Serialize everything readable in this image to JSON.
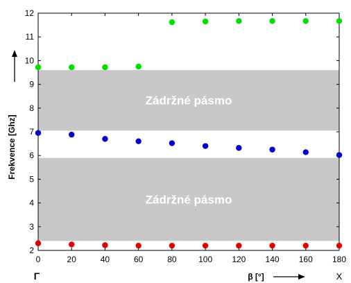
{
  "chart_data": {
    "type": "scatter",
    "xlabel": "β [°]",
    "ylabel": "Frekvence [Ghz]",
    "xlim": [
      0,
      180
    ],
    "ylim": [
      2,
      12
    ],
    "xticks": [
      "0",
      "20",
      "40",
      "60",
      "80",
      "100",
      "120",
      "140",
      "160",
      "180"
    ],
    "yticks": [
      "2",
      "3",
      "4",
      "5",
      "6",
      "7",
      "8",
      "9",
      "10",
      "11",
      "12"
    ],
    "grid": false,
    "corner_left": "Γ",
    "corner_right": "X",
    "bands": [
      {
        "label": "Zádržné pásmo",
        "ymin": 7.05,
        "ymax": 9.6,
        "color": "#c8c8c8"
      },
      {
        "label": "Zádržné pásmo",
        "ymin": 2.4,
        "ymax": 5.9,
        "color": "#c8c8c8"
      }
    ],
    "series": [
      {
        "color": "#00e000",
        "x": [
          0,
          20,
          40,
          60,
          80,
          100,
          120,
          140,
          160,
          180
        ],
        "values": [
          9.72,
          9.72,
          9.72,
          9.75,
          11.62,
          11.65,
          11.67,
          11.67,
          11.67,
          11.67
        ]
      },
      {
        "color": "#0000cc",
        "x": [
          0,
          20,
          40,
          60,
          80,
          100,
          120,
          140,
          160,
          180
        ],
        "values": [
          6.95,
          6.88,
          6.7,
          6.6,
          6.52,
          6.4,
          6.32,
          6.25,
          6.14,
          6.02
        ]
      },
      {
        "color": "#e00000",
        "x": [
          0,
          20,
          40,
          60,
          80,
          100,
          120,
          140,
          160,
          180
        ],
        "values": [
          2.3,
          2.25,
          2.22,
          2.2,
          2.2,
          2.2,
          2.2,
          2.2,
          2.2,
          2.2
        ]
      }
    ]
  }
}
